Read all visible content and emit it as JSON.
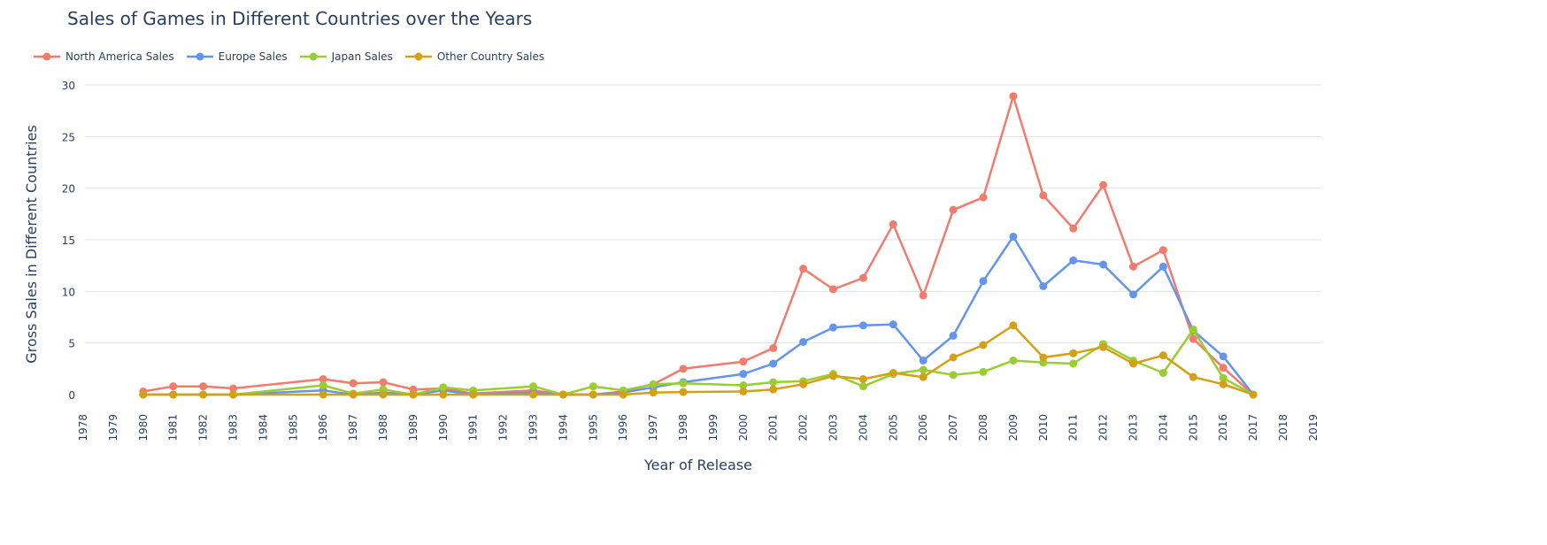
{
  "chart_data": {
    "type": "line",
    "title": "Sales of Games in Different Countries over the Years",
    "xlabel": "Year of Release",
    "ylabel": "Gross Sales in Different Countries",
    "xlim": [
      1978,
      2019
    ],
    "ylim": [
      -2,
      31
    ],
    "yticks": [
      0,
      5,
      10,
      15,
      20,
      25,
      30
    ],
    "xticks": [
      1978,
      1979,
      1980,
      1981,
      1982,
      1983,
      1984,
      1985,
      1986,
      1987,
      1988,
      1989,
      1990,
      1991,
      1992,
      1993,
      1994,
      1995,
      1996,
      1997,
      1998,
      1999,
      2000,
      2001,
      2002,
      2003,
      2004,
      2005,
      2006,
      2007,
      2008,
      2009,
      2010,
      2011,
      2012,
      2013,
      2014,
      2015,
      2016,
      2017,
      2018,
      2019
    ],
    "grid": true,
    "legend_position": "top-left",
    "x": [
      1980,
      1981,
      1982,
      1983,
      1986,
      1987,
      1988,
      1989,
      1990,
      1991,
      1993,
      1994,
      1995,
      1996,
      1997,
      1998,
      2000,
      2001,
      2002,
      2003,
      2004,
      2005,
      2006,
      2007,
      2008,
      2009,
      2010,
      2011,
      2012,
      2013,
      2014,
      2015,
      2016,
      2017
    ],
    "series": [
      {
        "name": "North America Sales",
        "color": "#f07c6e",
        "values": [
          0.3,
          0.8,
          0.8,
          0.6,
          1.5,
          1.1,
          1.2,
          0.5,
          0.6,
          0.1,
          0.4,
          0,
          0,
          0.3,
          1.0,
          2.5,
          3.2,
          4.5,
          12.2,
          10.2,
          11.3,
          16.5,
          9.6,
          17.9,
          19.1,
          28.9,
          19.3,
          16.1,
          20.3,
          12.4,
          14.0,
          5.4,
          2.6,
          0
        ]
      },
      {
        "name": "Europe Sales",
        "color": "#6495ed",
        "values": [
          0,
          0,
          0,
          0,
          0.4,
          0,
          0.2,
          0,
          0.4,
          0,
          0.2,
          0,
          0,
          0.2,
          0.7,
          1.2,
          2.0,
          3.0,
          5.1,
          6.5,
          6.7,
          6.8,
          3.3,
          5.7,
          11.0,
          15.3,
          10.5,
          13.0,
          12.6,
          9.7,
          12.4,
          6.2,
          3.7,
          0
        ]
      },
      {
        "name": "Japan Sales",
        "color": "#9acd32",
        "values": [
          0,
          0,
          0,
          0,
          0.9,
          0.1,
          0.5,
          0,
          0.7,
          0.4,
          0.8,
          0,
          0.8,
          0.4,
          1.0,
          1.1,
          0.9,
          1.2,
          1.3,
          2.0,
          0.8,
          2.0,
          2.4,
          1.9,
          2.2,
          3.3,
          3.1,
          3.0,
          4.9,
          3.3,
          2.1,
          6.3,
          1.6,
          0
        ]
      },
      {
        "name": "Other Country Sales",
        "color": "#d4a017",
        "values": [
          0,
          0,
          0,
          0,
          0,
          0,
          0,
          0,
          0,
          0,
          0,
          0,
          0,
          0,
          0.2,
          0.25,
          0.3,
          0.5,
          1.0,
          1.8,
          1.5,
          2.1,
          1.7,
          3.6,
          4.8,
          6.7,
          3.6,
          4.0,
          4.6,
          3.0,
          3.8,
          1.7,
          1.0,
          0
        ]
      }
    ]
  }
}
